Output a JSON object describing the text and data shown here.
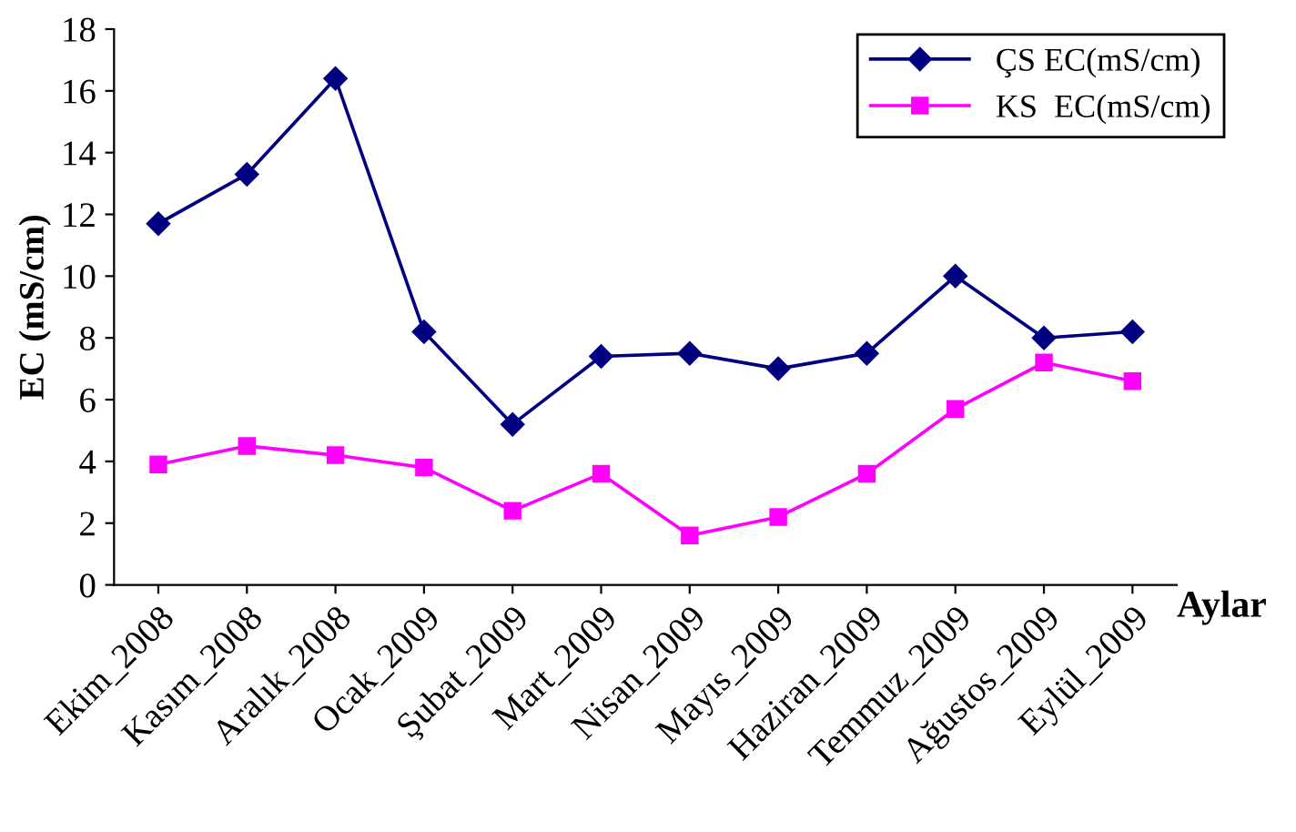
{
  "chart_data": {
    "type": "line",
    "xlabel": "Aylar",
    "ylabel": "EC (mS/cm)",
    "categories": [
      "Ekim_2008",
      "Kasım_2008",
      "Aralık_2008",
      "Ocak_2009",
      "Şubat_2009",
      "Mart_2009",
      "Nisan_2009",
      "Mayıs_2009",
      "Haziran_2009",
      "Temmuz_2009",
      "Ağustos_2009",
      "Eylül_2009"
    ],
    "series": [
      {
        "name": "ÇS EC(mS/cm)",
        "color": "#000080",
        "marker": "diamond",
        "values": [
          11.7,
          13.3,
          16.4,
          8.2,
          5.2,
          7.4,
          7.5,
          7.0,
          7.5,
          10.0,
          8.0,
          8.2
        ]
      },
      {
        "name": "KS  EC(mS/cm)",
        "color": "#ff00ff",
        "marker": "square",
        "values": [
          3.9,
          4.5,
          4.2,
          3.8,
          2.4,
          3.6,
          1.6,
          2.2,
          3.6,
          5.7,
          7.2,
          6.6
        ]
      }
    ],
    "ylim": [
      0,
      18
    ],
    "yticks": [
      0,
      2,
      4,
      6,
      8,
      10,
      12,
      14,
      16,
      18
    ],
    "grid": false,
    "legend": "top right",
    "line_style": "solid"
  }
}
